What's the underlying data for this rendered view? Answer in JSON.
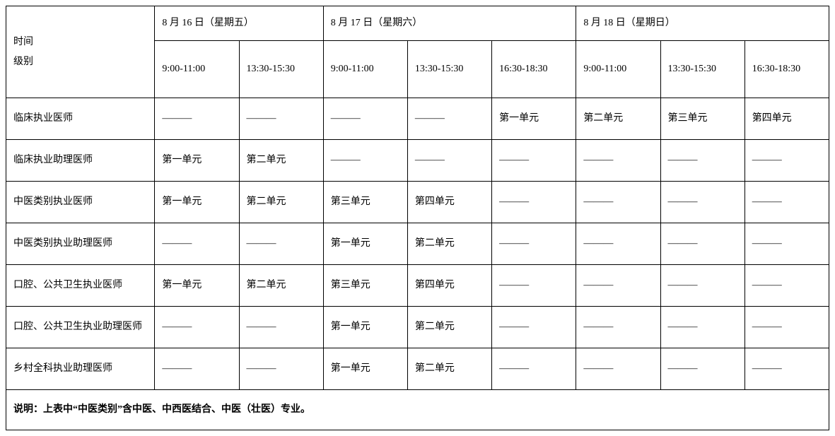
{
  "table": {
    "corner_label_line1": "时间",
    "corner_label_line2": "级别",
    "dates": [
      "8 月 16 日（星期五）",
      "8 月 17 日（星期六）",
      "8 月 18 日（星期日）"
    ],
    "time_slots": [
      "9:00-11:00",
      "13:30-15:30",
      "9:00-11:00",
      "13:30-15:30",
      "16:30-18:30",
      "9:00-11:00",
      "13:30-15:30",
      "16:30-18:30"
    ],
    "rows": [
      {
        "label": "临床执业医师",
        "cells": [
          "———",
          "———",
          "———",
          "———",
          "第一单元",
          "第二单元",
          "第三单元",
          "第四单元"
        ]
      },
      {
        "label": "临床执业助理医师",
        "cells": [
          "第一单元",
          "第二单元",
          "———",
          "———",
          "———",
          "———",
          "———",
          "———"
        ]
      },
      {
        "label": "中医类别执业医师",
        "cells": [
          "第一单元",
          "第二单元",
          "第三单元",
          "第四单元",
          "———",
          "———",
          "———",
          "———"
        ]
      },
      {
        "label": "中医类别执业助理医师",
        "cells": [
          "———",
          "———",
          "第一单元",
          "第二单元",
          "———",
          "———",
          "———",
          "———"
        ]
      },
      {
        "label": "口腔、公共卫生执业医师",
        "cells": [
          "第一单元",
          "第二单元",
          "第三单元",
          "第四单元",
          "———",
          "———",
          "———",
          "———"
        ]
      },
      {
        "label": "口腔、公共卫生执业助理医师",
        "cells": [
          "———",
          "———",
          "第一单元",
          "第二单元",
          "———",
          "———",
          "———",
          "———"
        ]
      },
      {
        "label": "乡村全科执业助理医师",
        "cells": [
          "———",
          "———",
          "第一单元",
          "第二单元",
          "———",
          "———",
          "———",
          "———"
        ]
      }
    ],
    "note": "说明：上表中“中医类别”含中医、中西医结合、中医（壮医）专业。",
    "colors": {
      "border": "#000000",
      "background": "#ffffff",
      "text": "#000000"
    },
    "font_size_pt": 10.5,
    "date_colspans": [
      2,
      3,
      3
    ]
  }
}
